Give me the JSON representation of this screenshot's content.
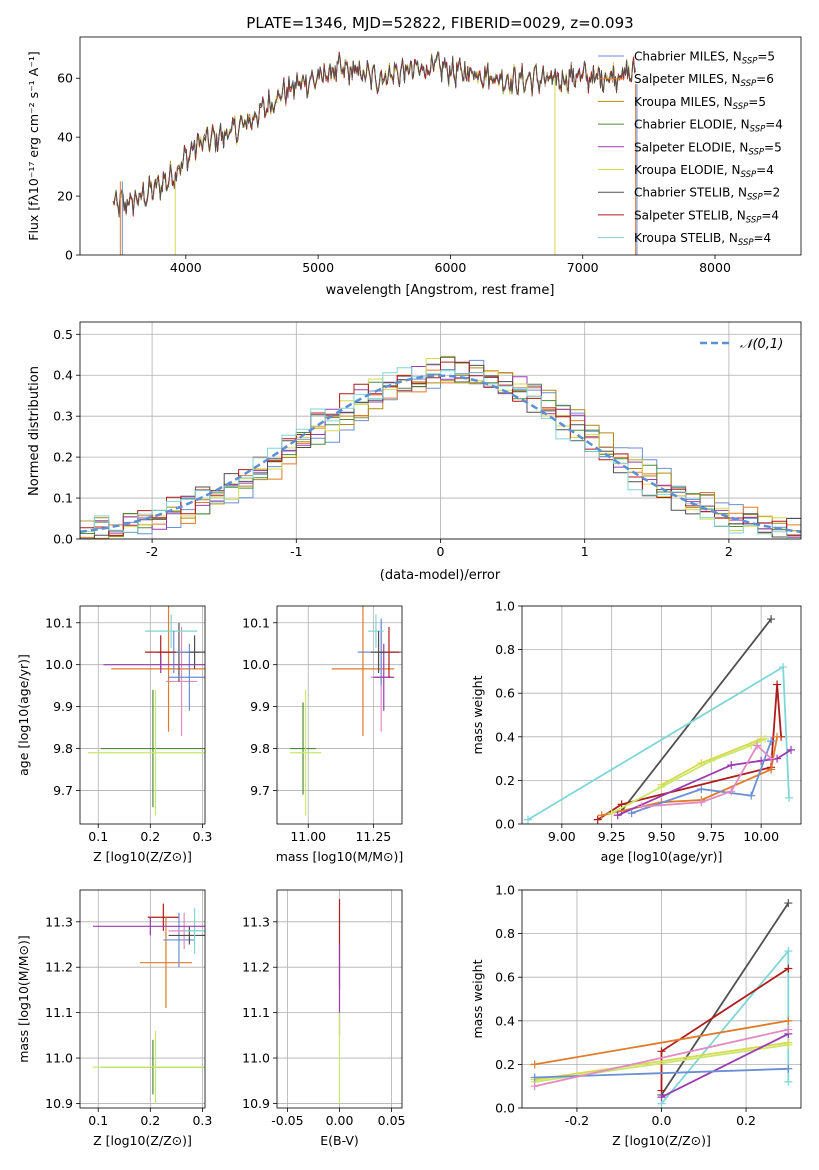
{
  "chart_data": [
    {
      "type": "line",
      "title": "PLATE=1346, MJD=52822, FIBERID=0029, z=0.093",
      "xlabel": "wavelength [Angstrom, rest frame]",
      "ylabel": "Flux [fλ10⁻¹⁷ erg cm⁻² s⁻¹ A⁻¹]",
      "xlim": [
        3200,
        8650
      ],
      "ylim": [
        0,
        74
      ],
      "xticks": [
        4000,
        5000,
        6000,
        7000,
        8000
      ],
      "yticks": [
        0,
        20,
        40,
        60
      ],
      "legend_position": "top-right",
      "spectrum_knots": {
        "x": [
          3450,
          3600,
          3750,
          3900,
          4000,
          4100,
          4250,
          4400,
          4550,
          4700,
          4850,
          5000,
          5150,
          5300,
          5450,
          5600,
          5750,
          5900,
          6050,
          6200,
          6350,
          6500,
          6650,
          6800,
          6950,
          7100,
          7250,
          7400
        ],
        "y": [
          17,
          18,
          22,
          27,
          33,
          38,
          40,
          43,
          48,
          54,
          58,
          60,
          63,
          62,
          60,
          62,
          63,
          64,
          62,
          62,
          60,
          59,
          60,
          59,
          61,
          60,
          61,
          62
        ]
      },
      "series": [
        {
          "name": "Chabrier MILES, N_SSP=5"
        },
        {
          "name": "Salpeter MILES, N_SSP=6"
        },
        {
          "name": "Kroupa MILES, N_SSP=5"
        },
        {
          "name": "Chabrier ELODIE, N_SSP=4"
        },
        {
          "name": "Salpeter ELODIE, N_SSP=5"
        },
        {
          "name": "Kroupa ELODIE, N_SSP=4"
        },
        {
          "name": "Chabrier STELIB, N_SSP=2"
        },
        {
          "name": "Salpeter STELIB, N_SSP=4"
        },
        {
          "name": "Kroupa STELIB, N_SSP=4"
        }
      ]
    },
    {
      "type": "histogram",
      "xlabel": "(data-model)/error",
      "ylabel": "Normed distribution",
      "xlim": [
        -2.5,
        2.5
      ],
      "ylim": [
        0,
        0.53
      ],
      "xticks": [
        -2,
        -1,
        0,
        1,
        2
      ],
      "yticks": [
        0.0,
        0.1,
        0.2,
        0.3,
        0.4,
        0.5
      ],
      "legend": "𝒩(0,1)",
      "legend_position": "top-right",
      "bin_width": 0.1,
      "hist_shape": {
        "x": [
          -2.5,
          -2.0,
          -1.5,
          -1.0,
          -0.5,
          0.0,
          0.5,
          1.0,
          1.5,
          2.0,
          2.5
        ],
        "y": [
          0.02,
          0.05,
          0.12,
          0.24,
          0.36,
          0.42,
          0.37,
          0.25,
          0.12,
          0.05,
          0.02
        ]
      }
    },
    {
      "type": "scatter",
      "subtype": "errorbar",
      "xlabel": "Z [log10(Z/Z⊙)]",
      "ylabel": "age  [log10(age/yr)]",
      "xlim": [
        0.065,
        0.305
      ],
      "ylim": [
        9.62,
        10.14
      ],
      "xticks": [
        0.1,
        0.2,
        0.3
      ],
      "yticks": [
        9.7,
        9.8,
        9.9,
        10.0,
        10.1
      ],
      "points": [
        {
          "x": 0.205,
          "y": 9.8,
          "xerr": 0.1,
          "yerr": 0.14
        },
        {
          "x": 0.21,
          "y": 9.79,
          "xerr": 0.13,
          "yerr": 0.15
        },
        {
          "x": 0.235,
          "y": 9.99,
          "xerr": 0.11,
          "yerr": 0.15
        },
        {
          "x": 0.26,
          "y": 9.96,
          "xerr": 0.03,
          "yerr": 0.13
        },
        {
          "x": 0.255,
          "y": 10.03,
          "xerr": 0.04,
          "yerr": 0.07
        },
        {
          "x": 0.275,
          "y": 9.97,
          "xerr": 0.04,
          "yerr": 0.08
        },
        {
          "x": 0.285,
          "y": 10.03,
          "xerr": 0.02,
          "yerr": 0.04
        },
        {
          "x": 0.24,
          "y": 10.08,
          "xerr": 0.05,
          "yerr": 0.04
        },
        {
          "x": 0.245,
          "y": 10.03,
          "xerr": 0.03,
          "yerr": 0.05
        },
        {
          "x": 0.22,
          "y": 10.03,
          "xerr": 0.03,
          "yerr": 0.04
        },
        {
          "x": 0.22,
          "y": 10.0,
          "xerr": 0.11,
          "yerr": 0.02
        }
      ]
    },
    {
      "type": "scatter",
      "subtype": "errorbar",
      "xlabel": "mass [log10(M/M⊙)]",
      "xlim": [
        10.88,
        11.36
      ],
      "ylim": [
        9.62,
        10.14
      ],
      "xticks": [
        11.0,
        11.25
      ],
      "yticks": [
        9.7,
        9.8,
        9.9,
        10.0,
        10.1
      ],
      "points": [
        {
          "x": 10.98,
          "y": 9.8,
          "xerr": 0.05,
          "yerr": 0.11
        },
        {
          "x": 10.99,
          "y": 9.79,
          "xerr": 0.06,
          "yerr": 0.15
        },
        {
          "x": 11.21,
          "y": 9.99,
          "xerr": 0.12,
          "yerr": 0.16
        },
        {
          "x": 11.28,
          "y": 9.97,
          "xerr": 0.04,
          "yerr": 0.13
        },
        {
          "x": 11.28,
          "y": 10.03,
          "xerr": 0.09,
          "yerr": 0.08
        },
        {
          "x": 11.29,
          "y": 9.97,
          "xerr": 0.04,
          "yerr": 0.08
        },
        {
          "x": 11.31,
          "y": 10.03,
          "xerr": 0.04,
          "yerr": 0.06
        },
        {
          "x": 11.26,
          "y": 10.08,
          "xerr": 0.03,
          "yerr": 0.04
        },
        {
          "x": 11.27,
          "y": 10.03,
          "xerr": 0.03,
          "yerr": 0.05
        }
      ]
    },
    {
      "type": "line",
      "xlabel": "age  [log10(age/yr)]",
      "ylabel": "mass weight",
      "xlim": [
        8.8,
        10.2
      ],
      "ylim": [
        0,
        1.0
      ],
      "xticks": [
        9.0,
        9.25,
        9.5,
        9.75,
        10.0
      ],
      "yticks": [
        0.0,
        0.2,
        0.4,
        0.6,
        0.8,
        1.0
      ],
      "series": [
        {
          "x": [
            9.3,
            10.05
          ],
          "y": [
            0.06,
            0.94
          ]
        },
        {
          "x": [
            8.83,
            10.11,
            10.14
          ],
          "y": [
            0.02,
            0.72,
            0.12
          ]
        },
        {
          "x": [
            9.18,
            9.3,
            10.05,
            10.08,
            10.1
          ],
          "y": [
            0.02,
            0.09,
            0.26,
            0.64,
            0.4
          ]
        },
        {
          "x": [
            9.2,
            9.5,
            9.7,
            10.05,
            10.08
          ],
          "y": [
            0.04,
            0.1,
            0.11,
            0.25,
            0.4
          ]
        },
        {
          "x": [
            9.25,
            9.5,
            9.75,
            9.95,
            10.02
          ],
          "y": [
            0.05,
            0.17,
            0.29,
            0.36,
            0.39
          ]
        },
        {
          "x": [
            9.5,
            9.7,
            10.0
          ],
          "y": [
            0.18,
            0.28,
            0.39
          ]
        },
        {
          "x": [
            9.28,
            9.85,
            10.0,
            10.08,
            10.15
          ],
          "y": [
            0.04,
            0.27,
            0.29,
            0.3,
            0.34
          ]
        },
        {
          "x": [
            9.35,
            9.7,
            9.95,
            10.05
          ],
          "y": [
            0.05,
            0.16,
            0.13,
            0.38
          ]
        },
        {
          "x": [
            9.4,
            9.7,
            9.85,
            9.98,
            10.05
          ],
          "y": [
            0.08,
            0.1,
            0.15,
            0.36,
            0.3
          ]
        }
      ]
    },
    {
      "type": "scatter",
      "subtype": "errorbar",
      "xlabel": "Z [log10(Z/Z⊙)]",
      "ylabel": "mass [log10(M/M⊙)]",
      "xlim": [
        0.065,
        0.305
      ],
      "ylim": [
        10.89,
        11.37
      ],
      "xticks": [
        0.1,
        0.2,
        0.3
      ],
      "yticks": [
        10.9,
        11.0,
        11.1,
        11.2,
        11.3
      ],
      "points": [
        {
          "x": 0.205,
          "y": 10.98,
          "xerr": 0.1,
          "yerr": 0.06
        },
        {
          "x": 0.21,
          "y": 10.98,
          "xerr": 0.12,
          "yerr": 0.08
        },
        {
          "x": 0.225,
          "y": 11.31,
          "xerr": 0.03,
          "yerr": 0.03
        },
        {
          "x": 0.23,
          "y": 11.21,
          "xerr": 0.05,
          "yerr": 0.1
        },
        {
          "x": 0.255,
          "y": 11.26,
          "xerr": 0.03,
          "yerr": 0.06
        },
        {
          "x": 0.265,
          "y": 11.28,
          "xerr": 0.03,
          "yerr": 0.04
        },
        {
          "x": 0.275,
          "y": 11.27,
          "xerr": 0.04,
          "yerr": 0.02
        },
        {
          "x": 0.285,
          "y": 11.28,
          "xerr": 0.02,
          "yerr": 0.05
        },
        {
          "x": 0.2,
          "y": 11.29,
          "xerr": 0.11,
          "yerr": 0.02
        }
      ]
    },
    {
      "type": "scatter",
      "subtype": "errorbar",
      "xlabel": "E(B-V)",
      "xlim": [
        -0.06,
        0.06
      ],
      "ylim": [
        10.89,
        11.37
      ],
      "xticks": [
        -0.05,
        0.0,
        0.05
      ],
      "yticks": [
        10.9,
        11.0,
        11.1,
        11.2,
        11.3
      ],
      "points": [
        {
          "x": 0.0,
          "y": 11.25,
          "yerr": 0.1
        },
        {
          "x": 0.0,
          "y": 11.15,
          "yerr": 0.1
        },
        {
          "x": 0.0,
          "y": 11.0,
          "yerr": 0.1
        }
      ]
    },
    {
      "type": "line",
      "xlabel": "Z [log10(Z/Z⊙)]",
      "ylabel": "mass weight",
      "xlim": [
        -0.33,
        0.33
      ],
      "ylim": [
        0,
        1.0
      ],
      "xticks": [
        -0.2,
        0.0,
        0.2
      ],
      "yticks": [
        0.0,
        0.2,
        0.4,
        0.6,
        0.8,
        1.0
      ],
      "series": [
        {
          "x": [
            0.0,
            0.3
          ],
          "y": [
            0.06,
            0.94
          ]
        },
        {
          "x": [
            0.0,
            0.3,
            0.3
          ],
          "y": [
            0.02,
            0.72,
            0.12
          ]
        },
        {
          "x": [
            0.0,
            0.0,
            0.3
          ],
          "y": [
            0.08,
            0.26,
            0.64
          ]
        },
        {
          "x": [
            -0.3,
            0.3
          ],
          "y": [
            0.2,
            0.4
          ]
        },
        {
          "x": [
            -0.3,
            0.3
          ],
          "y": [
            0.12,
            0.29
          ]
        },
        {
          "x": [
            -0.3,
            0.3
          ],
          "y": [
            0.13,
            0.3
          ]
        },
        {
          "x": [
            0.0,
            0.3
          ],
          "y": [
            0.05,
            0.34
          ]
        },
        {
          "x": [
            -0.3,
            0.3
          ],
          "y": [
            0.14,
            0.18
          ]
        },
        {
          "x": [
            -0.3,
            0.3
          ],
          "y": [
            0.1,
            0.36
          ]
        }
      ]
    }
  ],
  "colors": [
    "#6a8fd4",
    "#e07b2a",
    "#b08a10",
    "#4f8a3a",
    "#9b3bb0",
    "#d9d950",
    "#505050",
    "#b01c1c",
    "#7fd6d6"
  ],
  "extra_colors": [
    "#e28bc4",
    "#c9e86a",
    "#f7a8a8"
  ]
}
